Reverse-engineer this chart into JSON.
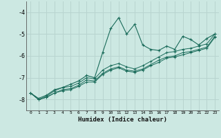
{
  "xlabel": "Humidex (Indice chaleur)",
  "ylabel": "",
  "bg_color": "#cce8e2",
  "grid_color": "#b8d4cf",
  "line_color": "#1a6b5a",
  "xlim": [
    -0.5,
    23.5
  ],
  "ylim": [
    -8.5,
    -3.5
  ],
  "yticks": [
    -8,
    -7,
    -6,
    -5,
    -4
  ],
  "xticks": [
    0,
    1,
    2,
    3,
    4,
    5,
    6,
    7,
    8,
    9,
    10,
    11,
    12,
    13,
    14,
    15,
    16,
    17,
    18,
    19,
    20,
    21,
    22,
    23
  ],
  "series": [
    [
      0,
      -7.7,
      1,
      -7.95,
      2,
      -7.8,
      3,
      -7.55,
      4,
      -7.45,
      5,
      -7.3,
      6,
      -7.15,
      7,
      -6.9,
      8,
      -7.0,
      9,
      -5.85,
      10,
      -4.75,
      11,
      -4.25,
      12,
      -5.0,
      13,
      -4.55,
      14,
      -5.5,
      15,
      -5.7,
      16,
      -5.75,
      17,
      -5.55,
      18,
      -5.7,
      19,
      -5.1,
      20,
      -5.25,
      21,
      -5.5,
      22,
      -5.2,
      23,
      -5.0
    ],
    [
      0,
      -7.7,
      1,
      -8.0,
      2,
      -7.85,
      3,
      -7.6,
      4,
      -7.45,
      5,
      -7.4,
      6,
      -7.25,
      7,
      -7.0,
      8,
      -7.05,
      9,
      -6.65,
      10,
      -6.45,
      11,
      -6.35,
      12,
      -6.5,
      13,
      -6.6,
      14,
      -6.45,
      15,
      -6.25,
      16,
      -6.05,
      17,
      -5.85,
      18,
      -5.8,
      19,
      -5.7,
      20,
      -5.65,
      21,
      -5.55,
      22,
      -5.45,
      23,
      -5.0
    ],
    [
      0,
      -7.7,
      1,
      -8.0,
      2,
      -7.9,
      3,
      -7.7,
      4,
      -7.55,
      5,
      -7.5,
      6,
      -7.35,
      7,
      -7.1,
      8,
      -7.15,
      9,
      -6.8,
      10,
      -6.6,
      11,
      -6.5,
      12,
      -6.65,
      13,
      -6.7,
      14,
      -6.6,
      15,
      -6.4,
      16,
      -6.2,
      17,
      -6.05,
      18,
      -6.0,
      19,
      -5.85,
      20,
      -5.8,
      21,
      -5.7,
      22,
      -5.6,
      23,
      -5.1
    ],
    [
      0,
      -7.7,
      1,
      -8.0,
      2,
      -7.9,
      3,
      -7.7,
      4,
      -7.6,
      5,
      -7.55,
      6,
      -7.4,
      7,
      -7.2,
      8,
      -7.2,
      9,
      -6.85,
      10,
      -6.65,
      11,
      -6.55,
      12,
      -6.7,
      13,
      -6.75,
      14,
      -6.65,
      15,
      -6.45,
      16,
      -6.3,
      17,
      -6.1,
      18,
      -6.05,
      19,
      -5.95,
      20,
      -5.85,
      21,
      -5.75,
      22,
      -5.65,
      23,
      -5.15
    ]
  ]
}
